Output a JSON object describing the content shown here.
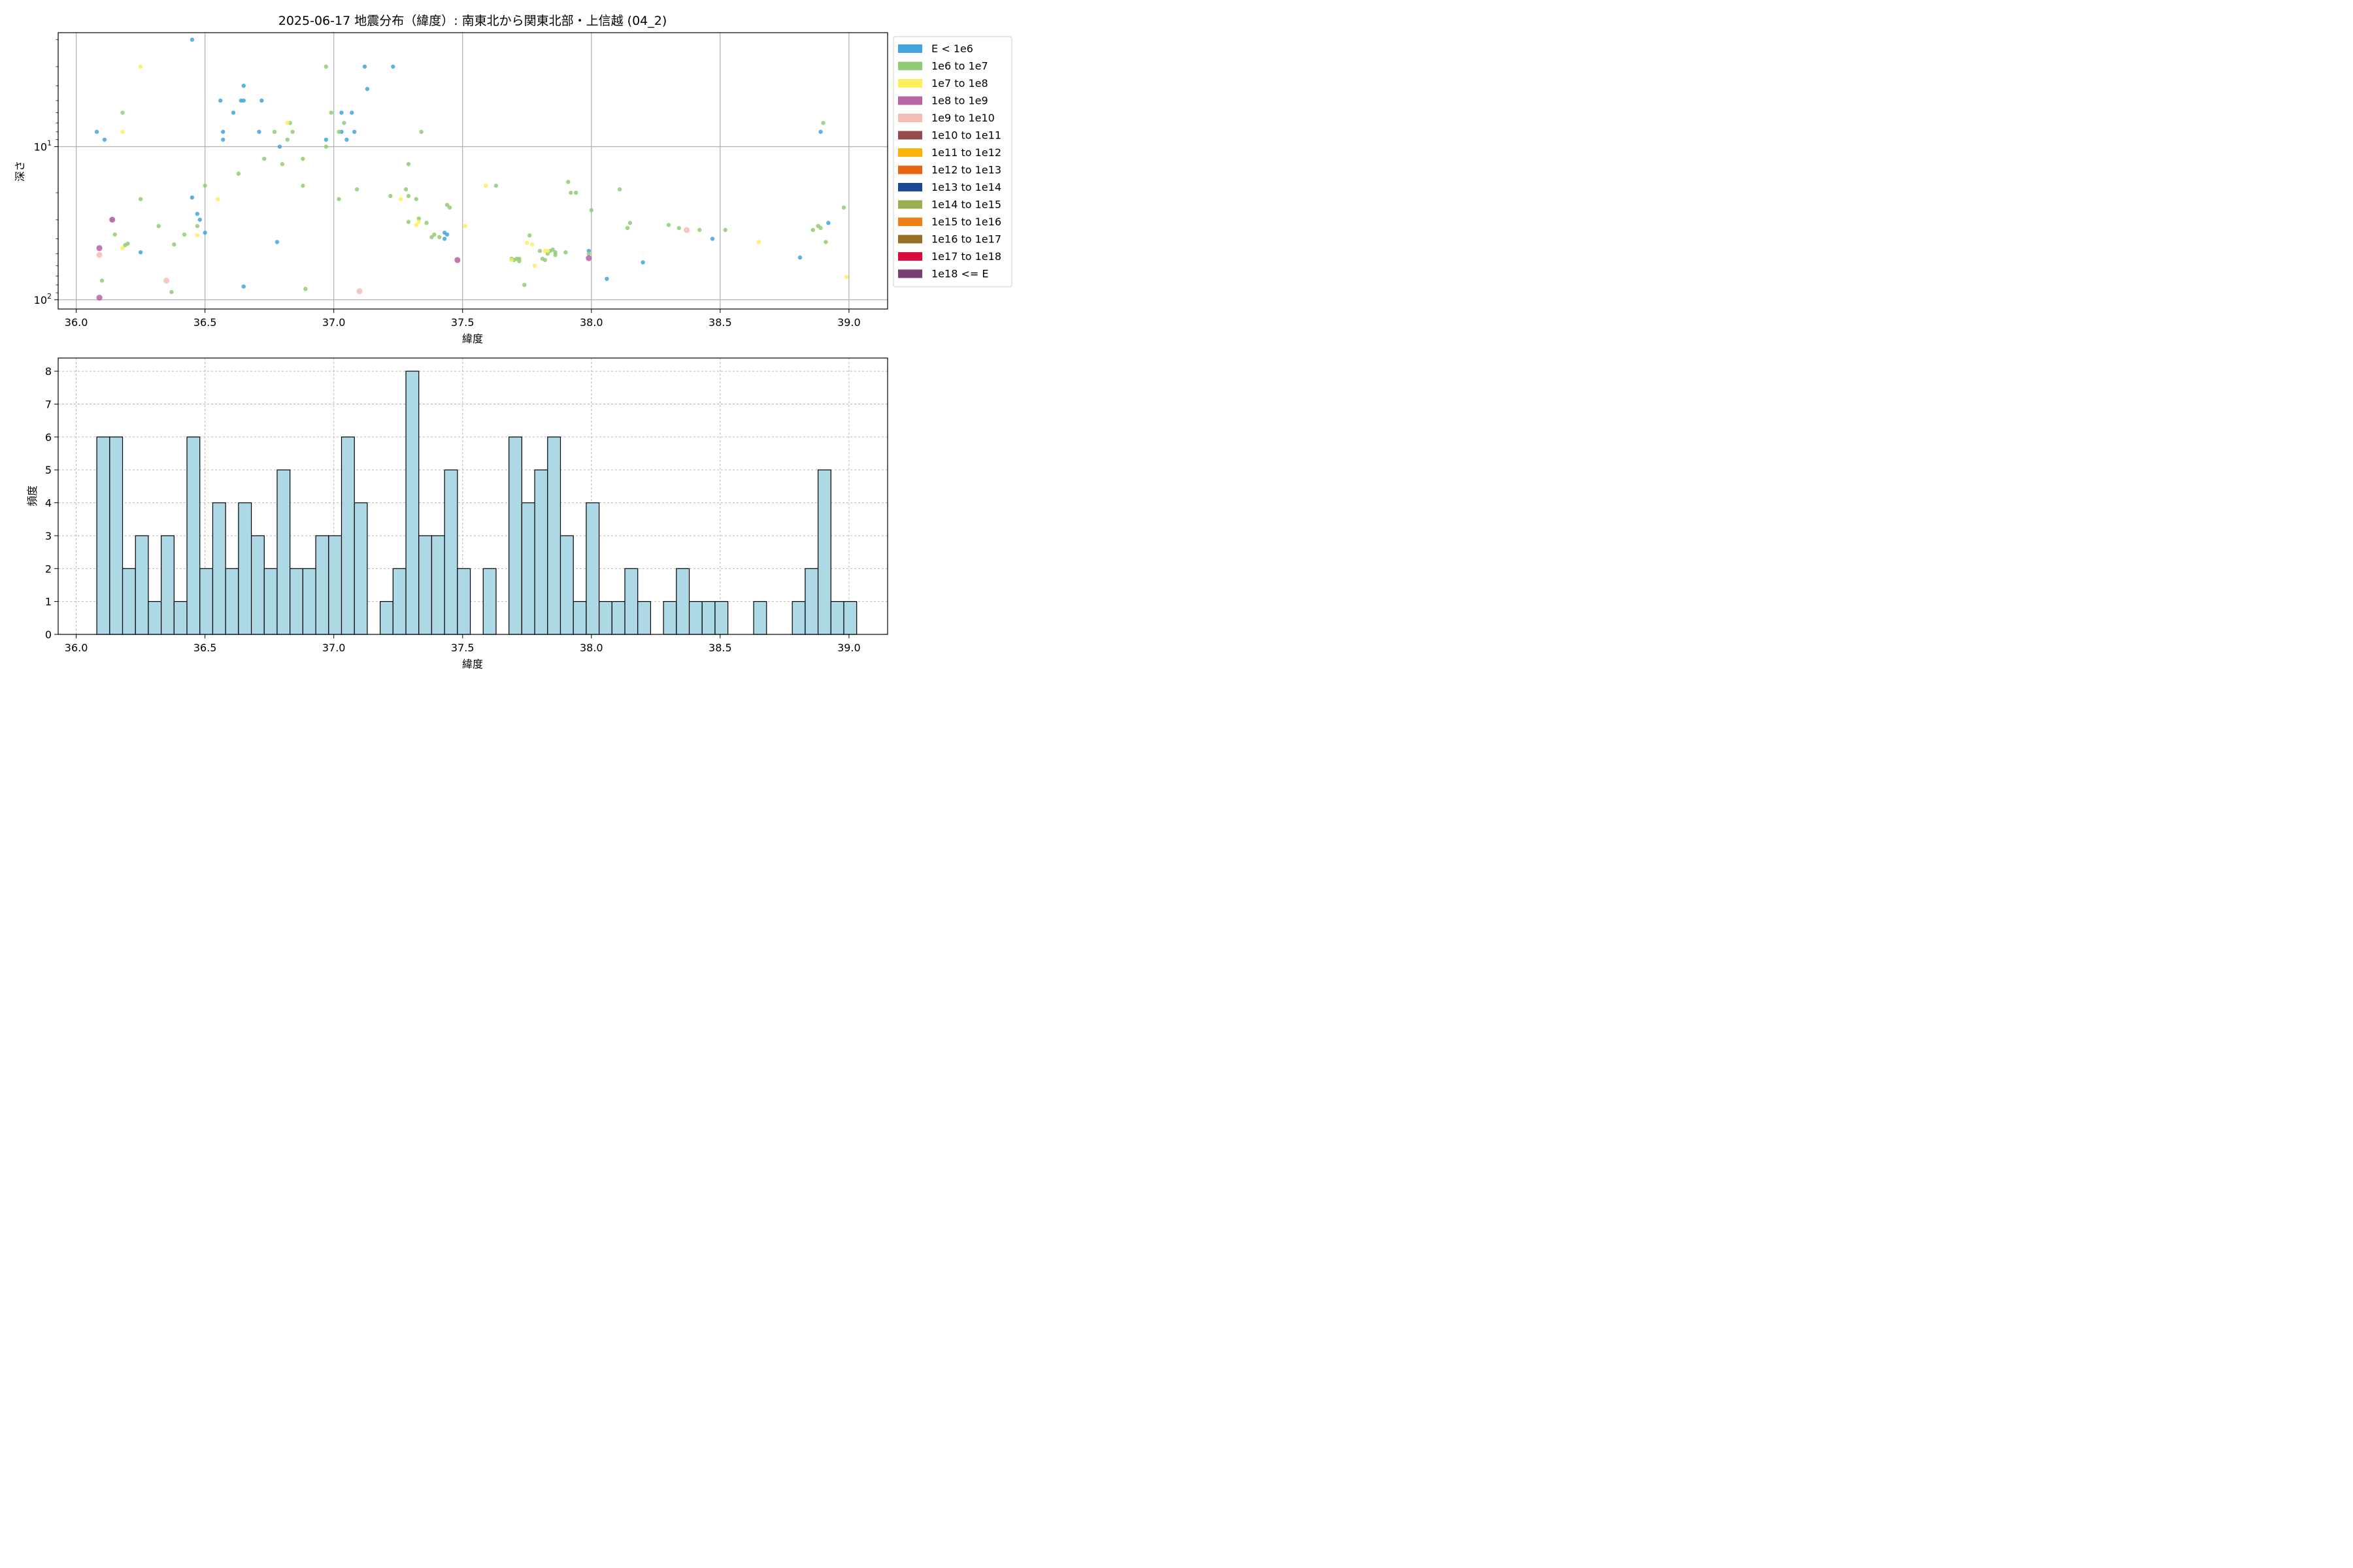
{
  "chart_data": [
    {
      "type": "scatter",
      "title": "2025-06-17 地震分布（緯度）: 南東北から関東北部・上信越 (04_2)",
      "xlabel": "緯度",
      "ylabel": "深さ",
      "xlim": [
        35.93,
        39.15
      ],
      "ylim": [
        115,
        1.8
      ],
      "yscale": "log",
      "y_inverted": true,
      "grid": true,
      "x_ticks": [
        "36.0",
        "36.5",
        "37.0",
        "37.5",
        "38.0",
        "38.5",
        "39.0"
      ],
      "y_ticks": [
        "10^1",
        "10^2"
      ],
      "legend_position": "right",
      "legend": [
        {
          "label": "E < 1e6",
          "color": "#3fa5dc"
        },
        {
          "label": "1e6 to 1e7",
          "color": "#90cc74"
        },
        {
          "label": "1e7 to 1e8",
          "color": "#fded5b"
        },
        {
          "label": "1e8 to 1e9",
          "color": "#b763a4"
        },
        {
          "label": "1e9 to 1e10",
          "color": "#f5beb4"
        },
        {
          "label": "1e10 to 1e11",
          "color": "#944b49"
        },
        {
          "label": "1e11 to 1e12",
          "color": "#fab30a"
        },
        {
          "label": "1e12 to 1e13",
          "color": "#e86610"
        },
        {
          "label": "1e13 to 1e14",
          "color": "#1a4a96"
        },
        {
          "label": "1e14 to 1e15",
          "color": "#9aae52"
        },
        {
          "label": "1e15 to 1e16",
          "color": "#f17f13"
        },
        {
          "label": "1e16 to 1e17",
          "color": "#977028"
        },
        {
          "label": "1e17 to 1e18",
          "color": "#da0b3c"
        },
        {
          "label": "1e18 <= E",
          "color": "#774070"
        }
      ],
      "points": [
        {
          "x": 36.45,
          "y": 2.0,
          "c": 0
        },
        {
          "x": 36.08,
          "y": 8.0,
          "c": 0
        },
        {
          "x": 36.11,
          "y": 9.0,
          "c": 0
        },
        {
          "x": 36.45,
          "y": 21.5,
          "c": 0
        },
        {
          "x": 36.47,
          "y": 27.5,
          "c": 0
        },
        {
          "x": 36.48,
          "y": 30.0,
          "c": 0
        },
        {
          "x": 36.5,
          "y": 36.5,
          "c": 0
        },
        {
          "x": 36.25,
          "y": 49.0,
          "c": 0
        },
        {
          "x": 36.56,
          "y": 5.0,
          "c": 0
        },
        {
          "x": 36.57,
          "y": 8.0,
          "c": 0
        },
        {
          "x": 36.57,
          "y": 9.0,
          "c": 0
        },
        {
          "x": 36.61,
          "y": 6.0,
          "c": 0
        },
        {
          "x": 36.65,
          "y": 4.0,
          "c": 0
        },
        {
          "x": 36.64,
          "y": 5.0,
          "c": 0
        },
        {
          "x": 36.65,
          "y": 5.0,
          "c": 0
        },
        {
          "x": 36.72,
          "y": 5.0,
          "c": 0
        },
        {
          "x": 36.71,
          "y": 8.0,
          "c": 0
        },
        {
          "x": 36.79,
          "y": 10.0,
          "c": 0
        },
        {
          "x": 36.78,
          "y": 42.0,
          "c": 0
        },
        {
          "x": 36.65,
          "y": 82.0,
          "c": 0
        },
        {
          "x": 37.12,
          "y": 3.0,
          "c": 0
        },
        {
          "x": 37.23,
          "y": 3.0,
          "c": 0
        },
        {
          "x": 37.13,
          "y": 4.2,
          "c": 0
        },
        {
          "x": 37.03,
          "y": 6.0,
          "c": 0
        },
        {
          "x": 37.07,
          "y": 6.0,
          "c": 0
        },
        {
          "x": 37.03,
          "y": 8.0,
          "c": 0
        },
        {
          "x": 37.08,
          "y": 8.0,
          "c": 0
        },
        {
          "x": 37.05,
          "y": 9.0,
          "c": 0
        },
        {
          "x": 36.97,
          "y": 9.0,
          "c": 0
        },
        {
          "x": 37.43,
          "y": 36.5,
          "c": 0
        },
        {
          "x": 37.44,
          "y": 37.5,
          "c": 0
        },
        {
          "x": 37.43,
          "y": 40.0,
          "c": 0
        },
        {
          "x": 37.99,
          "y": 48.0,
          "c": 0
        },
        {
          "x": 38.2,
          "y": 57.0,
          "c": 0
        },
        {
          "x": 38.06,
          "y": 73.0,
          "c": 0
        },
        {
          "x": 38.47,
          "y": 40.0,
          "c": 0
        },
        {
          "x": 38.81,
          "y": 53.0,
          "c": 0
        },
        {
          "x": 38.89,
          "y": 8.0,
          "c": 0
        },
        {
          "x": 38.92,
          "y": 31.5,
          "c": 0
        },
        {
          "x": 36.18,
          "y": 6.0,
          "c": 1
        },
        {
          "x": 36.14,
          "y": 30.0,
          "c": 1
        },
        {
          "x": 36.15,
          "y": 37.5,
          "c": 1
        },
        {
          "x": 36.19,
          "y": 44.0,
          "c": 1
        },
        {
          "x": 36.2,
          "y": 43.0,
          "c": 1
        },
        {
          "x": 36.1,
          "y": 75.0,
          "c": 1
        },
        {
          "x": 36.25,
          "y": 22.0,
          "c": 1
        },
        {
          "x": 36.32,
          "y": 33.0,
          "c": 1
        },
        {
          "x": 36.38,
          "y": 43.5,
          "c": 1
        },
        {
          "x": 36.42,
          "y": 37.5,
          "c": 1
        },
        {
          "x": 36.37,
          "y": 89.0,
          "c": 1
        },
        {
          "x": 36.47,
          "y": 33.0,
          "c": 1
        },
        {
          "x": 36.5,
          "y": 18.0,
          "c": 1
        },
        {
          "x": 36.63,
          "y": 15.0,
          "c": 1
        },
        {
          "x": 36.73,
          "y": 12.0,
          "c": 1
        },
        {
          "x": 36.77,
          "y": 8.0,
          "c": 1
        },
        {
          "x": 36.8,
          "y": 13.0,
          "c": 1
        },
        {
          "x": 36.82,
          "y": 9.0,
          "c": 1
        },
        {
          "x": 36.83,
          "y": 7.0,
          "c": 1
        },
        {
          "x": 36.84,
          "y": 8.0,
          "c": 1
        },
        {
          "x": 36.88,
          "y": 12.0,
          "c": 1
        },
        {
          "x": 36.88,
          "y": 18.0,
          "c": 1
        },
        {
          "x": 36.89,
          "y": 85.0,
          "c": 1
        },
        {
          "x": 36.97,
          "y": 3.0,
          "c": 1
        },
        {
          "x": 36.97,
          "y": 10.0,
          "c": 1
        },
        {
          "x": 36.99,
          "y": 6.0,
          "c": 1
        },
        {
          "x": 37.02,
          "y": 8.0,
          "c": 1
        },
        {
          "x": 37.04,
          "y": 7.0,
          "c": 1
        },
        {
          "x": 37.02,
          "y": 22.0,
          "c": 1
        },
        {
          "x": 37.09,
          "y": 19.0,
          "c": 1
        },
        {
          "x": 37.22,
          "y": 21.0,
          "c": 1
        },
        {
          "x": 37.28,
          "y": 19.0,
          "c": 1
        },
        {
          "x": 37.29,
          "y": 21.0,
          "c": 1
        },
        {
          "x": 37.29,
          "y": 31.0,
          "c": 1
        },
        {
          "x": 37.29,
          "y": 13.0,
          "c": 1
        },
        {
          "x": 37.32,
          "y": 22.0,
          "c": 1
        },
        {
          "x": 37.33,
          "y": 29.5,
          "c": 1
        },
        {
          "x": 37.34,
          "y": 8.0,
          "c": 1
        },
        {
          "x": 37.36,
          "y": 31.5,
          "c": 1
        },
        {
          "x": 37.38,
          "y": 39.0,
          "c": 1
        },
        {
          "x": 37.39,
          "y": 37.5,
          "c": 1
        },
        {
          "x": 37.41,
          "y": 39.0,
          "c": 1
        },
        {
          "x": 37.44,
          "y": 24.0,
          "c": 1
        },
        {
          "x": 37.45,
          "y": 25.0,
          "c": 1
        },
        {
          "x": 37.63,
          "y": 18.0,
          "c": 1
        },
        {
          "x": 37.69,
          "y": 54.0,
          "c": 1
        },
        {
          "x": 37.7,
          "y": 55.0,
          "c": 1
        },
        {
          "x": 37.71,
          "y": 54.0,
          "c": 1
        },
        {
          "x": 37.72,
          "y": 56.0,
          "c": 1
        },
        {
          "x": 37.72,
          "y": 54.0,
          "c": 1
        },
        {
          "x": 37.74,
          "y": 80.0,
          "c": 1
        },
        {
          "x": 37.76,
          "y": 38.0,
          "c": 1
        },
        {
          "x": 37.8,
          "y": 48.0,
          "c": 1
        },
        {
          "x": 37.81,
          "y": 54.0,
          "c": 1
        },
        {
          "x": 37.82,
          "y": 55.0,
          "c": 1
        },
        {
          "x": 37.83,
          "y": 50.0,
          "c": 1
        },
        {
          "x": 37.84,
          "y": 48.0,
          "c": 1
        },
        {
          "x": 37.85,
          "y": 47.0,
          "c": 1
        },
        {
          "x": 37.86,
          "y": 49.0,
          "c": 1
        },
        {
          "x": 37.86,
          "y": 51.0,
          "c": 1
        },
        {
          "x": 37.91,
          "y": 17.0,
          "c": 1
        },
        {
          "x": 37.92,
          "y": 20.0,
          "c": 1
        },
        {
          "x": 37.94,
          "y": 20.0,
          "c": 1
        },
        {
          "x": 37.9,
          "y": 49.0,
          "c": 1
        },
        {
          "x": 37.99,
          "y": 50.0,
          "c": 1
        },
        {
          "x": 38.0,
          "y": 26.0,
          "c": 1
        },
        {
          "x": 38.11,
          "y": 19.0,
          "c": 1
        },
        {
          "x": 38.15,
          "y": 31.5,
          "c": 1
        },
        {
          "x": 38.14,
          "y": 34.0,
          "c": 1
        },
        {
          "x": 38.3,
          "y": 32.5,
          "c": 1
        },
        {
          "x": 38.34,
          "y": 34.0,
          "c": 1
        },
        {
          "x": 38.42,
          "y": 35.0,
          "c": 1
        },
        {
          "x": 38.52,
          "y": 35.0,
          "c": 1
        },
        {
          "x": 38.86,
          "y": 35.0,
          "c": 1
        },
        {
          "x": 38.88,
          "y": 33.0,
          "c": 1
        },
        {
          "x": 38.89,
          "y": 34.0,
          "c": 1
        },
        {
          "x": 38.91,
          "y": 42.0,
          "c": 1
        },
        {
          "x": 38.98,
          "y": 25.0,
          "c": 1
        },
        {
          "x": 38.9,
          "y": 7.0,
          "c": 1
        },
        {
          "x": 36.25,
          "y": 3.0,
          "c": 2
        },
        {
          "x": 36.18,
          "y": 8.0,
          "c": 2
        },
        {
          "x": 36.18,
          "y": 46.0,
          "c": 2
        },
        {
          "x": 36.47,
          "y": 38.0,
          "c": 2
        },
        {
          "x": 36.55,
          "y": 22.0,
          "c": 2
        },
        {
          "x": 36.82,
          "y": 7.0,
          "c": 2
        },
        {
          "x": 37.26,
          "y": 22.0,
          "c": 2
        },
        {
          "x": 37.32,
          "y": 32.5,
          "c": 2
        },
        {
          "x": 37.33,
          "y": 31.0,
          "c": 2
        },
        {
          "x": 37.51,
          "y": 33.0,
          "c": 2
        },
        {
          "x": 37.59,
          "y": 18.0,
          "c": 2
        },
        {
          "x": 37.69,
          "y": 55.0,
          "c": 2
        },
        {
          "x": 37.75,
          "y": 42.5,
          "c": 2
        },
        {
          "x": 37.77,
          "y": 43.5,
          "c": 2
        },
        {
          "x": 37.78,
          "y": 60.0,
          "c": 2
        },
        {
          "x": 37.82,
          "y": 48.0,
          "c": 2
        },
        {
          "x": 37.83,
          "y": 48.0,
          "c": 2
        },
        {
          "x": 38.65,
          "y": 42.0,
          "c": 2
        },
        {
          "x": 38.99,
          "y": 71.0,
          "c": 2
        },
        {
          "x": 36.09,
          "y": 46.0,
          "c": 3
        },
        {
          "x": 36.14,
          "y": 30.0,
          "c": 3
        },
        {
          "x": 36.09,
          "y": 97.0,
          "c": 3
        },
        {
          "x": 37.48,
          "y": 55.0,
          "c": 3
        },
        {
          "x": 37.99,
          "y": 53.5,
          "c": 3
        },
        {
          "x": 36.09,
          "y": 51.0,
          "c": 4
        },
        {
          "x": 36.35,
          "y": 75.0,
          "c": 4
        },
        {
          "x": 37.1,
          "y": 88.0,
          "c": 4
        },
        {
          "x": 38.37,
          "y": 35.0,
          "c": 4
        }
      ]
    },
    {
      "type": "bar",
      "title": "",
      "xlabel": "緯度",
      "ylabel": "頻度",
      "xlim": [
        35.93,
        39.15
      ],
      "ylim": [
        0,
        8.4
      ],
      "grid": true,
      "x_ticks": [
        "36.0",
        "36.5",
        "37.0",
        "37.5",
        "38.0",
        "38.5",
        "39.0"
      ],
      "y_ticks": [
        "0",
        "1",
        "2",
        "3",
        "4",
        "5",
        "6",
        "7",
        "8"
      ],
      "bin_start": 36.08,
      "bin_width": 0.05,
      "values": [
        6,
        6,
        2,
        3,
        1,
        3,
        1,
        6,
        2,
        4,
        2,
        4,
        3,
        2,
        5,
        2,
        2,
        3,
        3,
        6,
        4,
        0,
        1,
        2,
        8,
        3,
        3,
        5,
        2,
        0,
        2,
        0,
        6,
        4,
        5,
        6,
        3,
        1,
        4,
        1,
        1,
        2,
        1,
        0,
        1,
        2,
        1,
        1,
        1,
        0,
        0,
        1,
        0,
        0,
        1,
        2,
        5,
        1,
        1
      ],
      "bar_color": "#add8e6",
      "edge_color": "#000000"
    }
  ]
}
